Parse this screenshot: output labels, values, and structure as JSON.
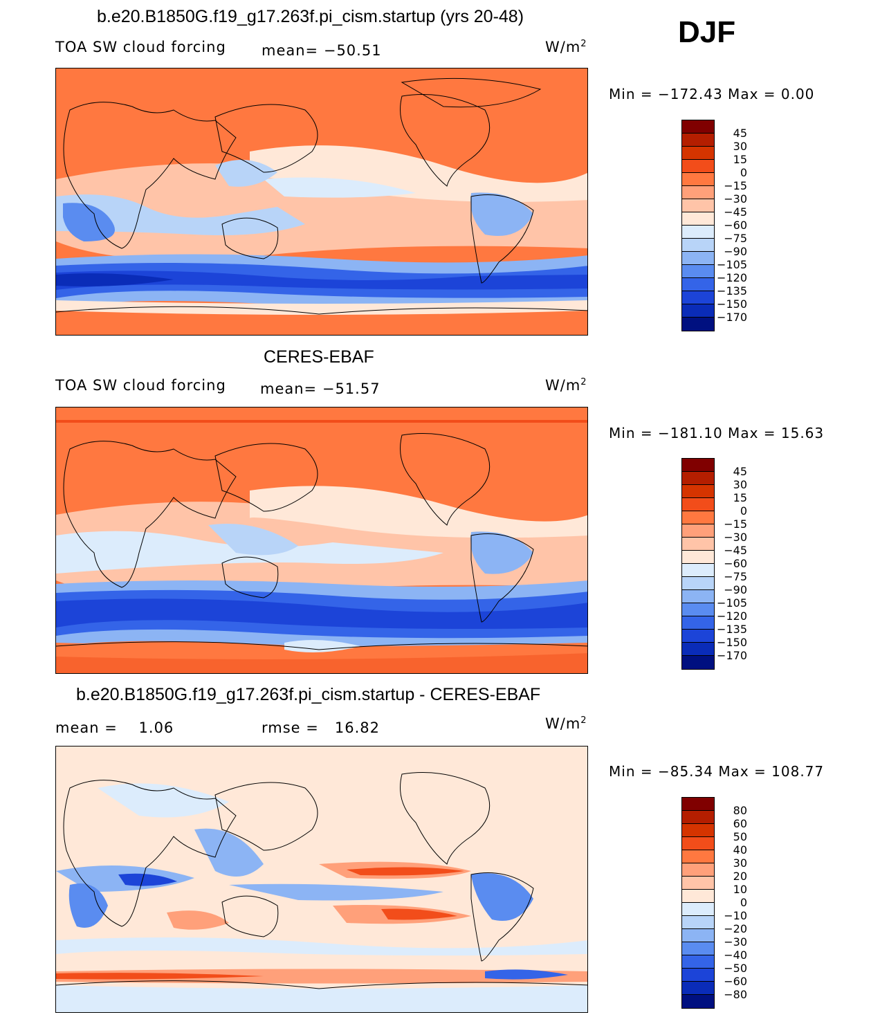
{
  "season": "DJF",
  "units_unit": "W/m",
  "units_exp": "2",
  "panels": [
    {
      "title": "b.e20.B1850G.f19_g17.263f.pi_cism.startup (yrs 20-48)",
      "left_label": "TOA SW cloud forcing",
      "stat_label": "mean=",
      "stat_value": "−50.51",
      "minmax": "Min = −172.43 Max =    0.00"
    },
    {
      "title": "CERES-EBAF",
      "left_label": "TOA SW cloud forcing",
      "stat_label": "mean=",
      "stat_value": "−51.57",
      "minmax": "Min = −181.10 Max =  15.63"
    },
    {
      "title": "b.e20.B1850G.f19_g17.263f.pi_cism.startup - CERES-EBAF",
      "mean_label": "mean =",
      "mean_value": "1.06",
      "rmse_label": "rmse =",
      "rmse_value": "16.82",
      "minmax": "Min = −85.34 Max = 108.77"
    }
  ],
  "colorbar_colors": [
    "#800000",
    "#b41e00",
    "#d53400",
    "#f24d1a",
    "#ff7840",
    "#ffa07a",
    "#ffc4a8",
    "#ffe8d8",
    "#dcecfc",
    "#b8d4f8",
    "#8cb4f4",
    "#5a8cf0",
    "#3464e8",
    "#1c44d8",
    "#0a2cb8",
    "#001080"
  ],
  "chart_data": [
    {
      "type": "heatmap",
      "title": "b.e20.B1850G.f19_g17.263f.pi_cism.startup (yrs 20-48)",
      "variable": "TOA SW cloud forcing",
      "units": "W/m2",
      "mean": -50.51,
      "min": -172.43,
      "max": 0.0,
      "colorbar_levels": [
        "45",
        "30",
        "15",
        "0",
        "−15",
        "−30",
        "−45",
        "−60",
        "−75",
        "−90",
        "−105",
        "−120",
        "−135",
        "−150",
        "−170"
      ]
    },
    {
      "type": "heatmap",
      "title": "CERES-EBAF",
      "variable": "TOA SW cloud forcing",
      "units": "W/m2",
      "mean": -51.57,
      "min": -181.1,
      "max": 15.63,
      "colorbar_levels": [
        "45",
        "30",
        "15",
        "0",
        "−15",
        "−30",
        "−45",
        "−60",
        "−75",
        "−90",
        "−105",
        "−120",
        "−135",
        "−150",
        "−170"
      ]
    },
    {
      "type": "heatmap",
      "title": "b.e20.B1850G.f19_g17.263f.pi_cism.startup - CERES-EBAF",
      "units": "W/m2",
      "mean": 1.06,
      "rmse": 16.82,
      "min": -85.34,
      "max": 108.77,
      "colorbar_levels": [
        "80",
        "60",
        "50",
        "40",
        "30",
        "20",
        "10",
        "0",
        "−10",
        "−20",
        "−30",
        "−40",
        "−50",
        "−60",
        "−80"
      ]
    }
  ]
}
